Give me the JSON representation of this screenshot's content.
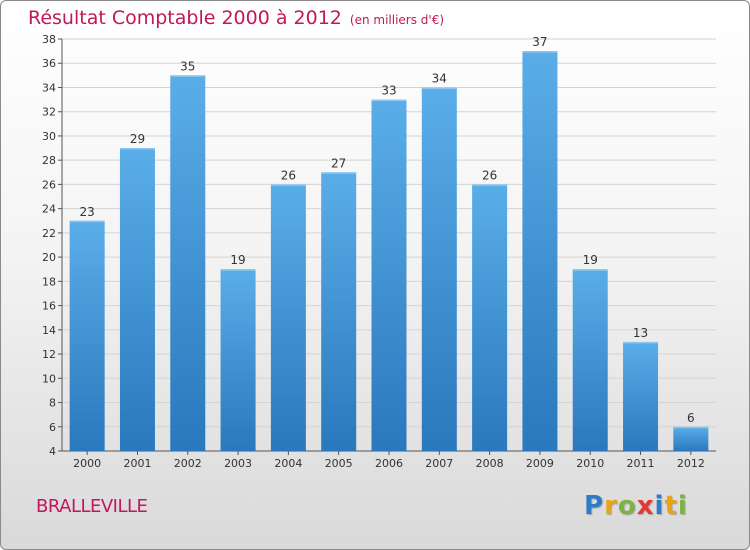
{
  "chart_data": {
    "type": "bar",
    "title": "Résultat Comptable 2000 à 2012",
    "unit_label": "(en milliers d'€)",
    "categories": [
      "2000",
      "2001",
      "2002",
      "2003",
      "2004",
      "2005",
      "2006",
      "2007",
      "2008",
      "2009",
      "2010",
      "2011",
      "2012"
    ],
    "values": [
      23,
      29,
      35,
      19,
      26,
      27,
      33,
      34,
      26,
      37,
      19,
      13,
      6
    ],
    "ylim": [
      4,
      38
    ],
    "yticks": [
      4,
      6,
      8,
      10,
      12,
      14,
      16,
      18,
      20,
      22,
      24,
      26,
      28,
      30,
      32,
      34,
      36,
      38
    ],
    "xlabel": "",
    "ylabel": "",
    "grid": true,
    "bar_color": "#3a8fd6"
  },
  "commune": "BRALLEVILLE",
  "logo": {
    "letters": [
      "P",
      "r",
      "o",
      "x",
      "i",
      "t",
      "i"
    ]
  }
}
